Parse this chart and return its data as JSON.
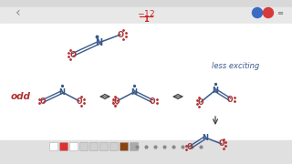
{
  "bg_color": "#ffffff",
  "bg_main": "#f0f0f0",
  "title_bar_color": "#d8d8d8",
  "title_bar_color2": "#e8e8e8",
  "title_text": "-12",
  "title_denom": "1",
  "less_exciting_text": "less exciting",
  "odd_text": "odd",
  "nav_bar_color": "#d5d5d5",
  "blue_btn": "#3a6bc4",
  "red_btn": "#d63b3b",
  "molecule_blue": "#3a5a8a",
  "molecule_red": "#b03030",
  "arrow_color": "#444444",
  "red_title": "#cc2222",
  "toolbar_bg": "#e0e0e0"
}
